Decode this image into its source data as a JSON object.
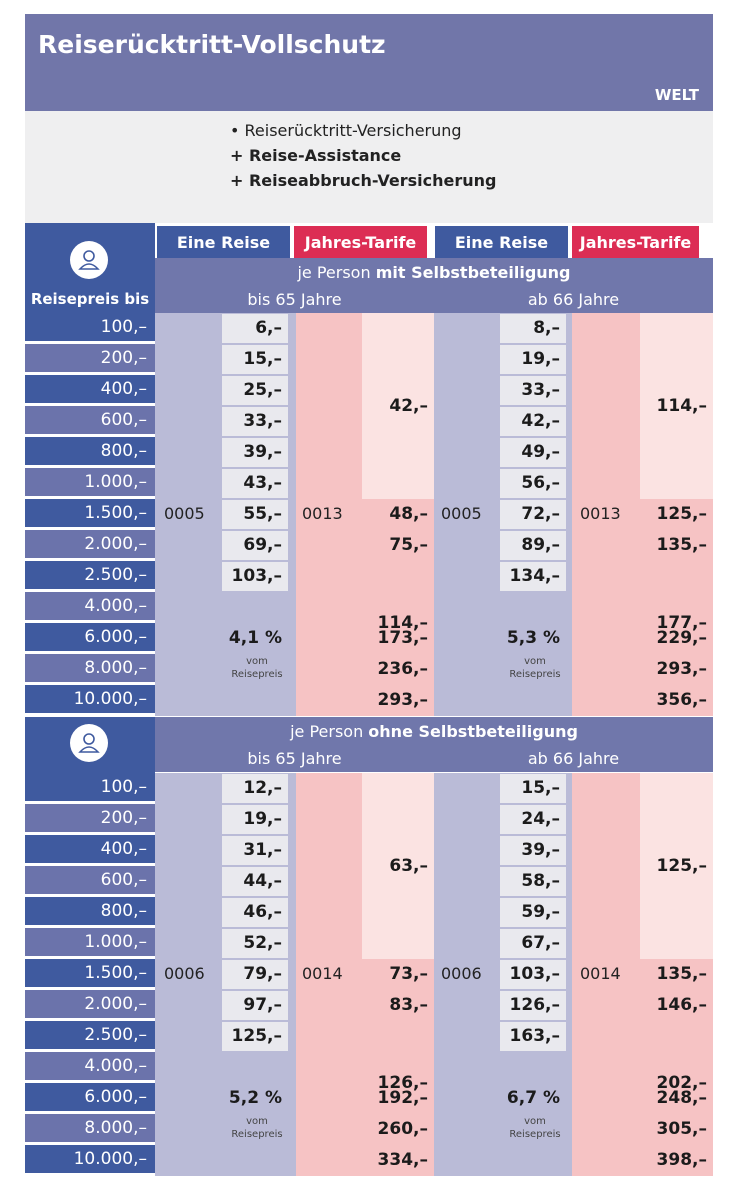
{
  "header": {
    "title": "Reiserücktritt-Vollschutz",
    "region": "WELT"
  },
  "coverage": {
    "line1": "• Reiserücktritt-Versicherung",
    "line2": "+ Reise-Assistance",
    "line3": "+ Reiseabbruch-Versicherung"
  },
  "tabs": {
    "single": "Eine Reise",
    "annual": "Jahres-Tarife",
    "single2": "Eine Reise",
    "annual2": "Jahres-Tarife"
  },
  "left": {
    "reisepreis_label": "Reisepreis bis"
  },
  "section1": {
    "label_pre": "je Person ",
    "label_bold": "mit Selbstbeteiligung",
    "age_a": "bis 65 Jahre",
    "age_b": "ab 66 Jahre"
  },
  "section2": {
    "label_pre": "je Person ",
    "label_bold": "ohne Selbstbeteiligung",
    "age_a": "bis 65 Jahre",
    "age_b": "ab 66 Jahre"
  },
  "prices": [
    "100,–",
    "200,–",
    "400,–",
    "600,–",
    "800,–",
    "1.000,–",
    "1.500,–",
    "2.000,–",
    "2.500,–",
    "4.000,–",
    "6.000,–",
    "8.000,–",
    "10.000,–"
  ],
  "s1": {
    "a_single": [
      "6,–",
      "15,–",
      "25,–",
      "33,–",
      "39,–",
      "43,–",
      "55,–",
      "69,–",
      "103,–"
    ],
    "a_single_code": "0005",
    "a_pct": "4,1 %",
    "a_vom": "vom",
    "a_rp": "Reisepreis",
    "a_annual_code": "0013",
    "a_annual": [
      "42,–",
      "48,–",
      "75,–",
      "114,–",
      "173,–",
      "236,–",
      "293,–"
    ],
    "b_single": [
      "8,–",
      "19,–",
      "33,–",
      "42,–",
      "49,–",
      "56,–",
      "72,–",
      "89,–",
      "134,–"
    ],
    "b_single_code": "0005",
    "b_pct": "5,3 %",
    "b_vom": "vom",
    "b_rp": "Reisepreis",
    "b_annual_code": "0013",
    "b_annual": [
      "114,–",
      "125,–",
      "135,–",
      "177,–",
      "229,–",
      "293,–",
      "356,–"
    ]
  },
  "s2": {
    "a_single": [
      "12,–",
      "19,–",
      "31,–",
      "44,–",
      "46,–",
      "52,–",
      "79,–",
      "97,–",
      "125,–"
    ],
    "a_single_code": "0006",
    "a_pct": "5,2 %",
    "a_vom": "vom",
    "a_rp": "Reisepreis",
    "a_annual_code": "0014",
    "a_annual": [
      "63,–",
      "73,–",
      "83,–",
      "126,–",
      "192,–",
      "260,–",
      "334,–"
    ],
    "b_single": [
      "15,–",
      "24,–",
      "39,–",
      "58,–",
      "59,–",
      "67,–",
      "103,–",
      "126,–",
      "163,–"
    ],
    "b_single_code": "0006",
    "b_pct": "6,7 %",
    "b_vom": "vom",
    "b_rp": "Reisepreis",
    "b_annual_code": "0014",
    "b_annual": [
      "125,–",
      "135,–",
      "146,–",
      "202,–",
      "248,–",
      "305,–",
      "398,–"
    ]
  },
  "colors": {
    "header": "#7176a9",
    "blue": "#3f5a9f",
    "stripe": "#6b73ab",
    "pink_tab": "#dc2d54",
    "single_col": "#babbd7",
    "annual_col": "#f6c3c4",
    "annual_light": "#fbe3e2"
  }
}
